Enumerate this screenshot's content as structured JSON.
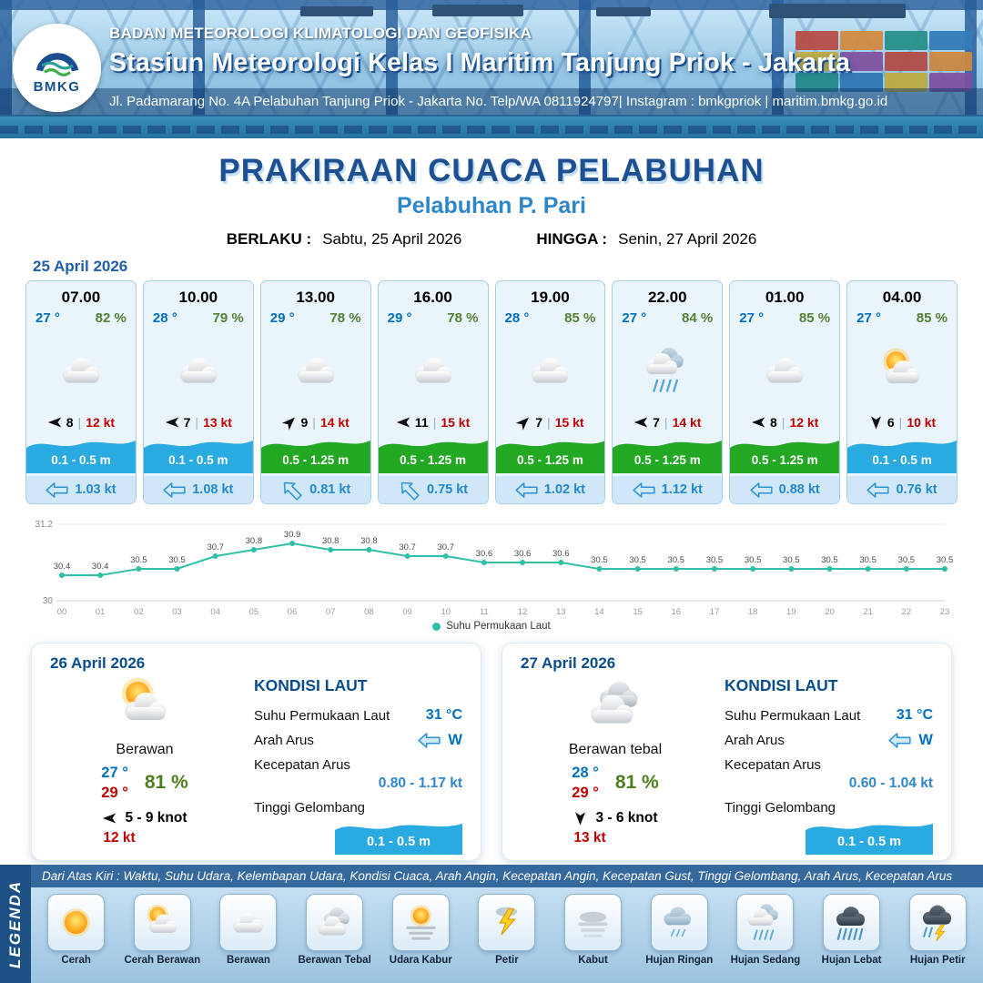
{
  "header": {
    "agency": "BADAN METEOROLOGI KLIMATOLOGI DAN GEOFISIKA",
    "station": "Stasiun Meteorologi Kelas I Maritim Tanjung Priok - Jakarta",
    "address": "Jl. Padamarang No. 4A Pelabuhan Tanjung Priok - Jakarta No. Telp/WA 0811924797| Instagram : bmkgpriok | maritim.bmkg.go.id",
    "logo_text": "BMKG"
  },
  "title": {
    "main": "PRAKIRAAN CUACA PELABUHAN",
    "sub": "Pelabuhan P. Pari",
    "berlaku_label": "BERLAKU :",
    "berlaku_value": "Sabtu, 25 April 2026",
    "hingga_label": "HINGGA :",
    "hingga_value": "Senin, 27 April 2026"
  },
  "hourly": {
    "date": "25 April 2026",
    "cards": [
      {
        "time": "07.00",
        "temp": "27 °",
        "rh": "82 %",
        "icon": "berawan",
        "wind_dir": "left",
        "wind_speed": "8",
        "gust": "12 kt",
        "wave": "0.1 - 0.5 m",
        "wave_color": "#29abe2",
        "current_dir": "left",
        "current": "1.03 kt"
      },
      {
        "time": "10.00",
        "temp": "28 °",
        "rh": "79 %",
        "icon": "berawan",
        "wind_dir": "left",
        "wind_speed": "7",
        "gust": "13 kt",
        "wave": "0.1 - 0.5 m",
        "wave_color": "#29abe2",
        "current_dir": "left",
        "current": "1.08 kt"
      },
      {
        "time": "13.00",
        "temp": "29 °",
        "rh": "78 %",
        "icon": "berawan",
        "wind_dir": "up-right",
        "wind_speed": "9",
        "gust": "14 kt",
        "wave": "0.5 - 1.25 m",
        "wave_color": "#22a822",
        "current_dir": "up-left",
        "current": "0.81 kt"
      },
      {
        "time": "16.00",
        "temp": "29 °",
        "rh": "78 %",
        "icon": "berawan",
        "wind_dir": "left",
        "wind_speed": "11",
        "gust": "15 kt",
        "wave": "0.5 - 1.25 m",
        "wave_color": "#22a822",
        "current_dir": "up-left",
        "current": "0.75 kt"
      },
      {
        "time": "19.00",
        "temp": "28 °",
        "rh": "85 %",
        "icon": "berawan",
        "wind_dir": "up-right",
        "wind_speed": "7",
        "gust": "15 kt",
        "wave": "0.5 - 1.25 m",
        "wave_color": "#22a822",
        "current_dir": "left",
        "current": "1.02 kt"
      },
      {
        "time": "22.00",
        "temp": "27 °",
        "rh": "84 %",
        "icon": "hujan-sedang",
        "wind_dir": "left",
        "wind_speed": "7",
        "gust": "14 kt",
        "wave": "0.5 - 1.25 m",
        "wave_color": "#22a822",
        "current_dir": "left",
        "current": "1.12 kt"
      },
      {
        "time": "01.00",
        "temp": "27 °",
        "rh": "85 %",
        "icon": "berawan",
        "wind_dir": "left",
        "wind_speed": "8",
        "gust": "12 kt",
        "wave": "0.5 - 1.25 m",
        "wave_color": "#22a822",
        "current_dir": "left",
        "current": "0.88 kt"
      },
      {
        "time": "04.00",
        "temp": "27 °",
        "rh": "85 %",
        "icon": "cerah-berawan",
        "wind_dir": "down",
        "wind_speed": "6",
        "gust": "10 kt",
        "wave": "0.1 - 0.5 m",
        "wave_color": "#29abe2",
        "current_dir": "left",
        "current": "0.76 kt"
      }
    ]
  },
  "chart_data": {
    "type": "line",
    "legend": "Suhu Permukaan Laut",
    "x": [
      "00",
      "01",
      "02",
      "03",
      "04",
      "05",
      "06",
      "07",
      "08",
      "09",
      "10",
      "11",
      "12",
      "13",
      "14",
      "15",
      "16",
      "17",
      "18",
      "19",
      "20",
      "21",
      "22",
      "23"
    ],
    "values": [
      30.4,
      30.4,
      30.5,
      30.5,
      30.7,
      30.8,
      30.9,
      30.8,
      30.8,
      30.7,
      30.7,
      30.6,
      30.6,
      30.6,
      30.5,
      30.5,
      30.5,
      30.5,
      30.5,
      30.5,
      30.5,
      30.5,
      30.5,
      30.5
    ],
    "ylim": [
      30,
      31.2
    ],
    "yticks": [
      30,
      31.2
    ],
    "line_color": "#2fbfa8",
    "grid": true,
    "legend_position": "bottom"
  },
  "daily": [
    {
      "date": "26 April 2026",
      "icon": "cerah-berawan",
      "condition": "Berawan",
      "temp_min": "27 °",
      "temp_max": "29 °",
      "rh": "81 %",
      "wind_dir": "left",
      "wind_range": "5  - 9 knot",
      "gust": "12 kt",
      "sea_title": "KONDISI LAUT",
      "sst_label": "Suhu Permukaan Laut",
      "sst": "31 °C",
      "arus_label": "Arah Arus",
      "arus_dir": "left",
      "arus_dir_text": "W",
      "kecepatan_label": "Kecepatan Arus",
      "kecepatan": "0.80  - 1.17 kt",
      "gelombang_label": "Tinggi Gelombang",
      "gelombang": "0.1 - 0.5 m"
    },
    {
      "date": "27 April 2026",
      "icon": "berawan-tebal",
      "condition": "Berawan tebal",
      "temp_min": "28 °",
      "temp_max": "29 °",
      "rh": "81 %",
      "wind_dir": "down",
      "wind_range": "3  - 6 knot",
      "gust": "13 kt",
      "sea_title": "KONDISI LAUT",
      "sst_label": "Suhu Permukaan Laut",
      "sst": "31 °C",
      "arus_label": "Arah Arus",
      "arus_dir": "left",
      "arus_dir_text": "W",
      "kecepatan_label": "Kecepatan Arus",
      "kecepatan": "0.60 - 1.04 kt",
      "gelombang_label": "Tinggi Gelombang",
      "gelombang": "0.1 - 0.5 m"
    }
  ],
  "legend_bar": {
    "title": "LEGENDA",
    "description": "Dari Atas Kiri : Waktu, Suhu Udara, Kelembapan Udara, Kondisi Cuaca, Arah Angin, Kecepatan Angin, Kecepatan Gust, Tinggi Gelombang, Arah Arus, Kecepatan Arus",
    "items": [
      {
        "label": "Cerah",
        "icon": "cerah"
      },
      {
        "label": "Cerah Berawan",
        "icon": "cerah-berawan"
      },
      {
        "label": "Berawan",
        "icon": "berawan"
      },
      {
        "label": "Berawan Tebal",
        "icon": "berawan-tebal"
      },
      {
        "label": "Udara Kabur",
        "icon": "udara-kabur"
      },
      {
        "label": "Petir",
        "icon": "petir"
      },
      {
        "label": "Kabut",
        "icon": "kabut"
      },
      {
        "label": "Hujan Ringan",
        "icon": "hujan-ringan"
      },
      {
        "label": "Hujan Sedang",
        "icon": "hujan-sedang"
      },
      {
        "label": "Hujan Lebat",
        "icon": "hujan-lebat"
      },
      {
        "label": "Hujan Petir",
        "icon": "hujan-petir"
      }
    ]
  }
}
